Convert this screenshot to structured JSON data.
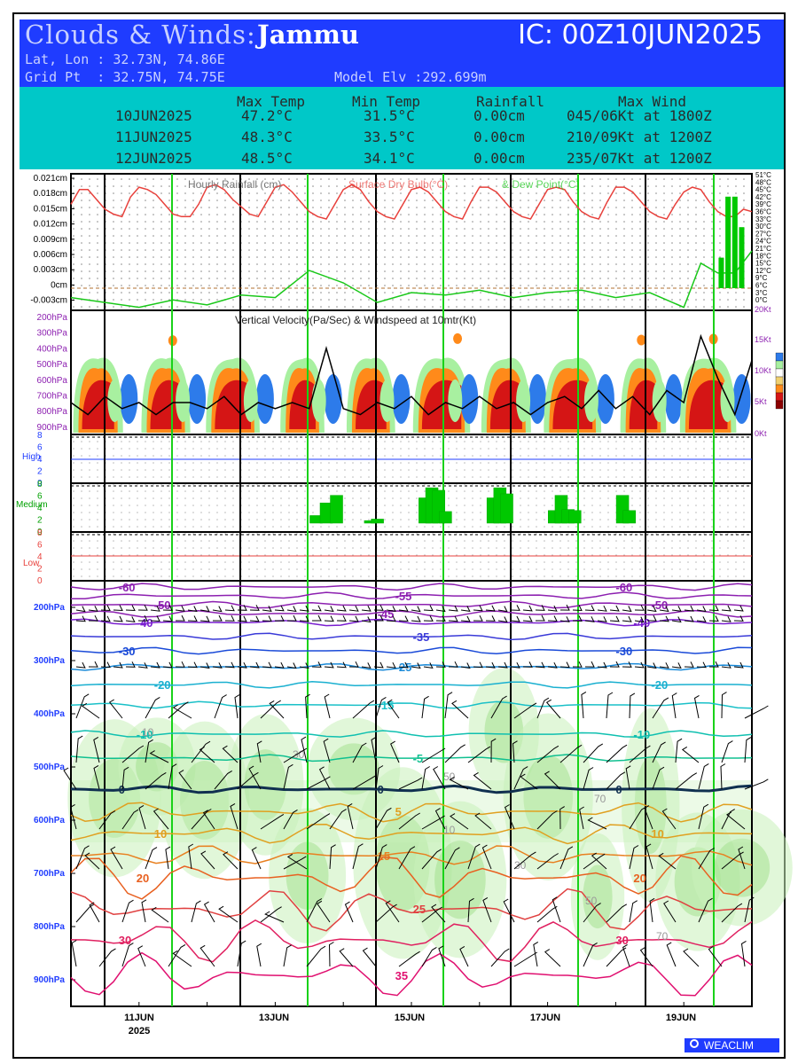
{
  "header": {
    "title_prefix": "Clouds & Winds:",
    "location": "Jammu",
    "ic": "IC: 00Z10JUN2025",
    "latlon": "Lat, Lon : 32.73N, 74.86E",
    "gridpt": "Grid Pt  : 32.75N, 74.75E",
    "model_elv": "Model Elv :292.699m"
  },
  "summary": {
    "headers": [
      "Max Temp",
      "Min Temp",
      "Rainfall",
      "Max Wind"
    ],
    "rows": [
      {
        "date": "10JUN2025",
        "max": "47.2°C",
        "min": "31.5°C",
        "rain": "0.00cm",
        "wind": "045/06Kt at 1800Z"
      },
      {
        "date": "11JUN2025",
        "max": "48.3°C",
        "min": "33.5°C",
        "rain": "0.00cm",
        "wind": "210/09Kt at 1200Z"
      },
      {
        "date": "12JUN2025",
        "max": "48.5°C",
        "min": "34.1°C",
        "rain": "0.00cm",
        "wind": "235/07Kt at 1200Z"
      }
    ]
  },
  "panel_titles": {
    "rain": "Hourly Rainfall (cm)",
    "dry": "Surface Dry Bulb(°C)",
    "dew": "& Dew Point(°C)",
    "vv": "Vertical Velocity(Pa/Sec) & Windspeed at 10mtr(Kt)"
  },
  "cloud_labels": {
    "high": "High",
    "medium": "Medium",
    "low": "Low"
  },
  "x_labels": [
    "11JUN",
    "13JUN",
    "15JUN",
    "17JUN",
    "19JUN"
  ],
  "x_year": "2025",
  "logo": "WEACLIM",
  "colors": {
    "header_bg": "#1f3cff",
    "table_bg": "#00c8c8",
    "temp": "#e8413c",
    "dew": "#19c819",
    "rain_bar": "#00c800",
    "day_line": "#19d219"
  },
  "chart_data": {
    "type": "meteogram",
    "time_range": [
      "2025-06-10T00Z",
      "2025-06-20T00Z"
    ],
    "rain_axis": {
      "label": "Hourly Rainfall (cm)",
      "ticks": [
        "0.021cm",
        "0.018cm",
        "0.015cm",
        "0.012cm",
        "0.009cm",
        "0.006cm",
        "0.003cm",
        "0cm",
        "-0.003cm"
      ],
      "ylim": [
        -0.003,
        0.021
      ]
    },
    "temp_axis": {
      "ticks": [
        "51°C",
        "48°C",
        "45°C",
        "42°C",
        "39°C",
        "36°C",
        "33°C",
        "30°C",
        "27°C",
        "24°C",
        "21°C",
        "18°C",
        "15°C",
        "12°C",
        "9°C",
        "6°C",
        "3°C",
        "0°C"
      ]
    },
    "vv_axis": {
      "levels": [
        "200hPa",
        "300hPa",
        "400hPa",
        "500hPa",
        "600hPa",
        "700hPa",
        "800hPa",
        "900hPa"
      ],
      "wind_ticks": [
        "20Kt",
        "15Kt",
        "10Kt",
        "5Kt",
        "0Kt"
      ]
    },
    "cloud_axis": {
      "ticks": [
        "8",
        "6",
        "4",
        "2",
        "0"
      ]
    },
    "profile_axis": {
      "levels": [
        "200hPa",
        "300hPa",
        "400hPa",
        "500hPa",
        "600hPa",
        "700hPa",
        "800hPa",
        "900hPa"
      ]
    },
    "dry_bulb": {
      "name": "Surface Dry Bulb(°C)",
      "x": [
        0,
        0.125,
        0.25,
        0.375,
        0.5,
        0.625,
        0.75,
        0.875,
        1,
        1.125,
        1.25,
        1.375,
        1.5,
        1.625,
        1.75,
        1.875,
        2,
        2.125,
        2.25,
        2.375,
        2.5,
        2.625,
        2.75,
        2.875,
        3,
        3.125,
        3.25,
        3.375,
        3.5,
        3.625,
        3.75,
        3.875,
        4,
        4.125,
        4.25,
        4.375,
        4.5,
        4.625,
        4.75,
        4.875,
        5,
        5.125,
        5.25,
        5.375,
        5.5,
        5.625,
        5.75,
        5.875,
        6,
        6.125,
        6.25,
        6.375,
        6.5,
        6.625,
        6.75,
        6.875,
        7,
        7.125,
        7.25,
        7.375,
        7.5,
        7.625,
        7.75,
        7.875,
        8,
        8.125,
        8.25,
        8.375,
        8.5,
        8.625,
        8.75,
        8.875,
        9,
        9.125,
        9.25,
        9.375,
        9.5,
        9.625,
        9.75,
        9.875,
        10
      ],
      "y": [
        40,
        46,
        46,
        42,
        38,
        36,
        35,
        43,
        47,
        46,
        44,
        40,
        36,
        35,
        35,
        40,
        47,
        48,
        46,
        42,
        39,
        36,
        35,
        41,
        47,
        48,
        45,
        41,
        37,
        35,
        34,
        40,
        46,
        48,
        46,
        41,
        37,
        35,
        34,
        40,
        46,
        47,
        45,
        41,
        37,
        35,
        34,
        41,
        47,
        47,
        45,
        41,
        37,
        35,
        34,
        40,
        46,
        47,
        46,
        41,
        37,
        35,
        34,
        41,
        47,
        47,
        45,
        41,
        37,
        35,
        34,
        40,
        45,
        47,
        46,
        41,
        37,
        35,
        35,
        38,
        37
      ]
    },
    "dew_point": {
      "name": "Dew Point(°C)",
      "x": [
        0,
        0.5,
        1,
        1.5,
        2,
        2.5,
        3,
        3.5,
        4,
        4.5,
        5,
        5.5,
        6,
        6.5,
        7,
        7.5,
        8,
        8.5,
        9,
        9.25,
        9.5,
        9.75,
        10
      ],
      "y": [
        2,
        0,
        -2,
        1,
        -1,
        3,
        2,
        13,
        8,
        0,
        4,
        3,
        5,
        2,
        4,
        5,
        2,
        4,
        -2,
        16,
        12,
        12,
        21
      ]
    },
    "hourly_rain": {
      "name": "Hourly Rainfall (cm)",
      "x": [
        9.55,
        9.65,
        9.75,
        9.85
      ],
      "y": [
        0.006,
        0.018,
        0.018,
        0.012
      ]
    },
    "wind_10m": {
      "name": "Windspeed at 10mtr(Kt)",
      "x": [
        0,
        0.25,
        0.5,
        0.75,
        1,
        1.25,
        1.5,
        1.75,
        2,
        2.25,
        2.5,
        2.75,
        3,
        3.25,
        3.5,
        3.75,
        4,
        4.25,
        4.5,
        4.75,
        5,
        5.25,
        5.5,
        5.75,
        6,
        6.25,
        6.5,
        6.75,
        7,
        7.25,
        7.5,
        7.75,
        8,
        8.25,
        8.5,
        8.75,
        9,
        9.25,
        9.5,
        9.75,
        10
      ],
      "y": [
        5,
        3,
        6,
        4,
        5,
        3,
        5,
        5,
        4,
        6,
        3,
        5,
        4,
        5,
        4,
        14,
        4,
        3,
        5,
        4,
        6,
        3,
        5,
        4,
        6,
        4,
        5,
        3,
        5,
        6,
        4,
        7,
        4,
        6,
        3,
        7,
        5,
        16,
        9,
        3,
        12
      ]
    },
    "medium_clouds": {
      "name": "Medium",
      "x": [
        3.6,
        3.75,
        3.9,
        4.4,
        4.5,
        5.2,
        5.3,
        5.4,
        5.5,
        6.2,
        6.3,
        6.4,
        7.1,
        7.2,
        7.3,
        7.4,
        8.1,
        8.2
      ],
      "y": [
        1.5,
        4,
        5.5,
        0.5,
        0.8,
        5,
        7,
        6.5,
        2.3,
        5,
        7,
        5.8,
        2.5,
        5.5,
        2.7,
        2.5,
        5.5,
        2.5
      ]
    },
    "isotherm_labels": [
      "-60",
      "-55",
      "-50",
      "-45",
      "-40",
      "-35",
      "-30",
      "-25",
      "-20",
      "-15",
      "-10",
      "-5",
      "0",
      "5",
      "10",
      "15",
      "20",
      "25",
      "30",
      "35"
    ],
    "rh_labels": [
      "10",
      "30",
      "50",
      "70"
    ]
  }
}
